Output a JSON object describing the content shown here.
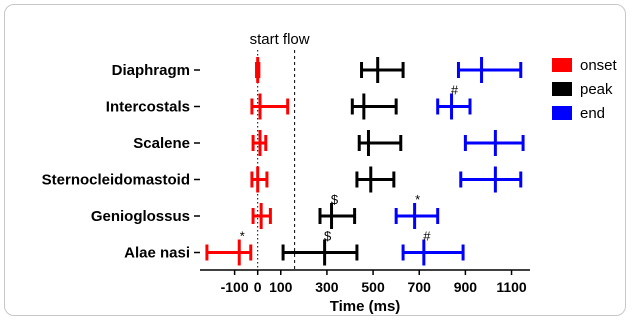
{
  "chart_data": {
    "type": "range-dot",
    "xlabel": "Time (ms)",
    "xlim": [
      -250,
      1180
    ],
    "xticks": [
      -100,
      0,
      100,
      300,
      500,
      700,
      900,
      1100
    ],
    "xtick_labels": [
      "-100",
      "0",
      "100",
      "300",
      "500",
      "700",
      "900",
      "1100"
    ],
    "categories": [
      "Diaphragm",
      "Intercostals",
      "Scalene",
      "Sternocleidomastoid",
      "Genioglossus",
      "Alae nasi"
    ],
    "reference_lines": [
      {
        "label": "",
        "x": 0,
        "style": "dotted"
      },
      {
        "label": "start flow",
        "x": 160,
        "style": "dashed"
      }
    ],
    "series": [
      {
        "name": "onset",
        "color": "#ff0000",
        "points": [
          {
            "mean": 0,
            "low": -5,
            "high": 5
          },
          {
            "mean": 10,
            "low": -25,
            "high": 130
          },
          {
            "mean": 10,
            "low": -20,
            "high": 35
          },
          {
            "mean": 0,
            "low": -25,
            "high": 40
          },
          {
            "mean": 15,
            "low": -20,
            "high": 55
          },
          {
            "mean": -80,
            "low": -220,
            "high": -30
          }
        ]
      },
      {
        "name": "peak",
        "color": "#000000",
        "points": [
          {
            "mean": 520,
            "low": 450,
            "high": 630
          },
          {
            "mean": 460,
            "low": 410,
            "high": 600
          },
          {
            "mean": 480,
            "low": 440,
            "high": 620
          },
          {
            "mean": 490,
            "low": 430,
            "high": 590
          },
          {
            "mean": 320,
            "low": 270,
            "high": 420
          },
          {
            "mean": 290,
            "low": 110,
            "high": 430
          }
        ]
      },
      {
        "name": "end",
        "color": "#0000ff",
        "points": [
          {
            "mean": 970,
            "low": 870,
            "high": 1140
          },
          {
            "mean": 840,
            "low": 780,
            "high": 920
          },
          {
            "mean": 1030,
            "low": 900,
            "high": 1150
          },
          {
            "mean": 1030,
            "low": 880,
            "high": 1140
          },
          {
            "mean": 680,
            "low": 600,
            "high": 780
          },
          {
            "mean": 720,
            "low": 630,
            "high": 890
          }
        ]
      }
    ],
    "annotations": [
      {
        "text": "#",
        "series": "end",
        "category": "Intercostals"
      },
      {
        "text": "$",
        "series": "peak",
        "category": "Genioglossus"
      },
      {
        "text": "*",
        "series": "end",
        "category": "Genioglossus"
      },
      {
        "text": "*",
        "series": "onset",
        "category": "Alae nasi"
      },
      {
        "text": "$",
        "series": "peak",
        "category": "Alae nasi"
      },
      {
        "text": "#",
        "series": "end",
        "category": "Alae nasi"
      }
    ]
  }
}
